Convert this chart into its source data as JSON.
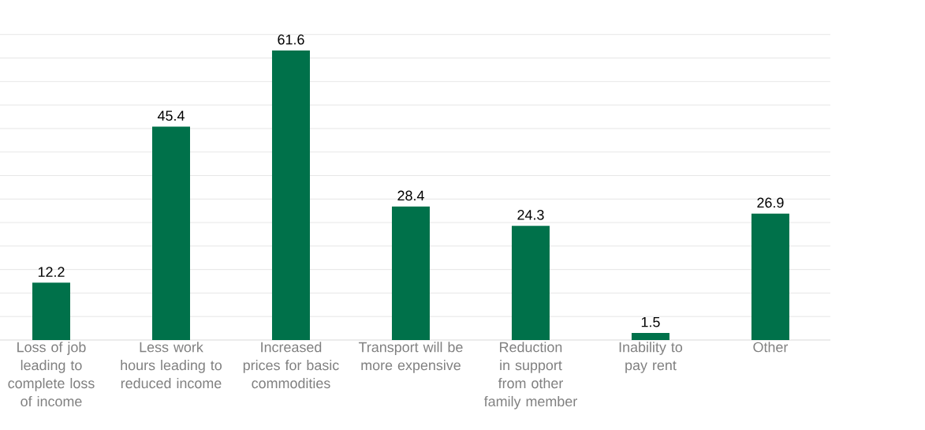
{
  "chart_data": {
    "type": "bar",
    "categories": [
      "Loss of job leading to complete loss of income",
      "Less work hours leading to reduced income",
      "Increased prices for basic commodities",
      "Transport will be more expensive",
      "Reduction in support from other family member",
      "Inability to pay rent",
      "Other"
    ],
    "values": [
      12.2,
      45.4,
      61.6,
      28.4,
      24.3,
      1.5,
      26.9
    ],
    "color": "#00714a",
    "grid": "y",
    "tick_labels": "x",
    "data_labels": true
  }
}
